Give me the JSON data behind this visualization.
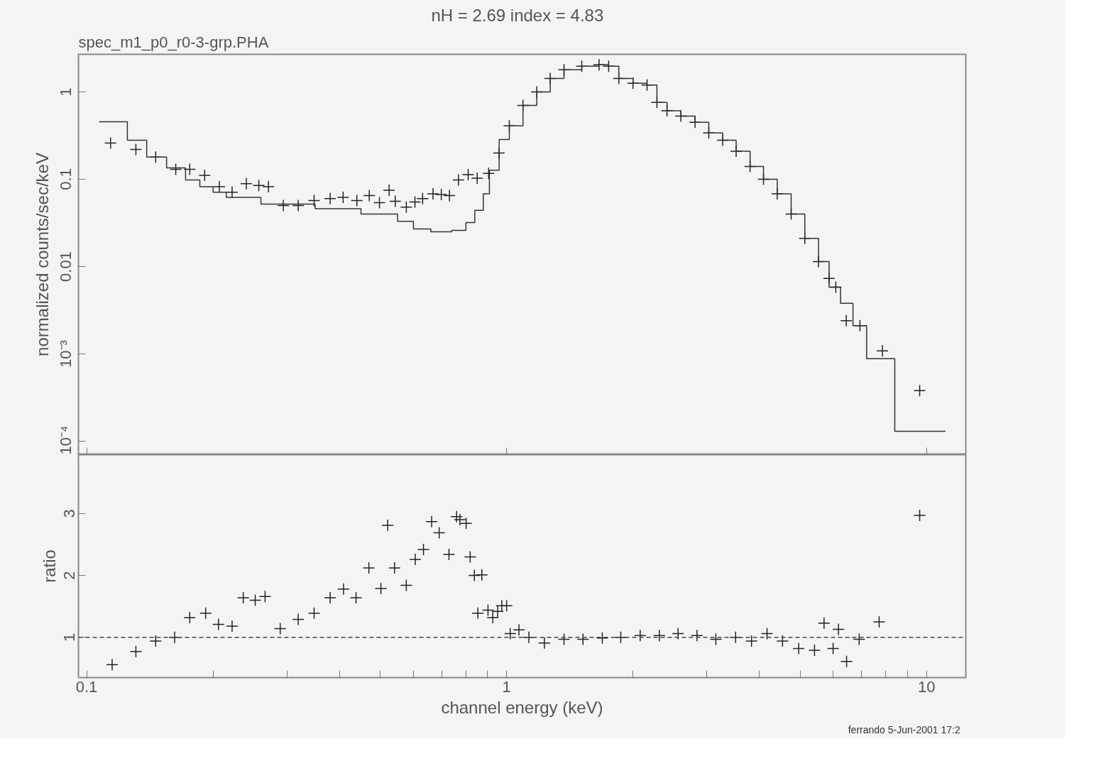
{
  "chart_data": [
    {
      "type": "scatter",
      "title": "nH = 2.69   index = 4.83",
      "subtitle": "spec_m1_p0_r0-3-grp.PHA",
      "ylabel": "normalized counts/sec/keV",
      "log": "xy",
      "grid": false,
      "tick_labels": "y",
      "xlim": [
        0.0956,
        12.4
      ],
      "ylim": [
        7e-05,
        2.7
      ],
      "xticks": [
        0.1,
        1,
        10
      ],
      "yticks": [
        {
          "value": 0.0001,
          "label": "10⁻⁴"
        },
        {
          "value": 0.001,
          "label": "10⁻³"
        },
        0.01,
        0.1,
        1
      ],
      "series": [
        {
          "color": "#222222",
          "marker": "cross",
          "x": [
            0.114,
            0.131,
            0.146,
            0.163,
            0.176,
            0.191,
            0.207,
            0.222,
            0.24,
            0.257,
            0.271,
            0.294,
            0.319,
            0.348,
            0.38,
            0.408,
            0.44,
            0.471,
            0.498,
            0.525,
            0.543,
            0.577,
            0.605,
            0.631,
            0.668,
            0.699,
            0.731,
            0.768,
            0.81,
            0.851,
            0.906,
            0.959,
            1.015,
            1.094,
            1.18,
            1.27,
            1.37,
            1.51,
            1.66,
            1.75,
            1.85,
            2.0,
            2.16,
            2.28,
            2.41,
            2.6,
            2.81,
            3.03,
            3.27,
            3.52,
            3.8,
            4.09,
            4.41,
            4.76,
            5.13,
            5.53,
            5.86,
            6.08,
            6.44,
            6.94,
            7.85,
            9.63
          ],
          "values": [
            0.26,
            0.22,
            0.18,
            0.13,
            0.13,
            0.111,
            0.082,
            0.071,
            0.089,
            0.085,
            0.082,
            0.05,
            0.05,
            0.057,
            0.06,
            0.062,
            0.057,
            0.065,
            0.054,
            0.075,
            0.056,
            0.048,
            0.055,
            0.06,
            0.068,
            0.067,
            0.065,
            0.098,
            0.113,
            0.103,
            0.117,
            0.2,
            0.41,
            0.7,
            1.0,
            1.43,
            1.8,
            1.97,
            2.05,
            1.97,
            1.43,
            1.26,
            1.2,
            0.76,
            0.61,
            0.53,
            0.45,
            0.34,
            0.28,
            0.21,
            0.14,
            0.1,
            0.068,
            0.04,
            0.021,
            0.0114,
            0.0073,
            0.0058,
            0.0024,
            0.0021,
            0.00108,
            0.00038
          ]
        },
        {
          "type": "step",
          "color": "#333333",
          "x": [
            0.107,
            0.125,
            0.139,
            0.155,
            0.172,
            0.186,
            0.2,
            0.215,
            0.26,
            0.35,
            0.45,
            0.55,
            0.6,
            0.66,
            0.74,
            0.8,
            0.84,
            0.88,
            0.91,
            0.96,
            1.015,
            1.094,
            1.18,
            1.27,
            1.37,
            1.51,
            1.66,
            1.75,
            1.85,
            2.0,
            2.16,
            2.28,
            2.41,
            2.6,
            2.81,
            3.03,
            3.27,
            3.52,
            3.8,
            4.09,
            4.41,
            4.76,
            5.13,
            5.53,
            5.86,
            6.24,
            6.68,
            7.2,
            8.4,
            11.1
          ],
          "values": [
            0.455,
            0.28,
            0.18,
            0.135,
            0.098,
            0.082,
            0.071,
            0.062,
            0.052,
            0.046,
            0.04,
            0.033,
            0.027,
            0.025,
            0.026,
            0.032,
            0.044,
            0.068,
            0.127,
            0.286,
            0.41,
            0.7,
            1.0,
            1.43,
            1.8,
            1.97,
            2.05,
            1.97,
            1.43,
            1.26,
            1.2,
            0.76,
            0.61,
            0.53,
            0.45,
            0.34,
            0.28,
            0.21,
            0.14,
            0.1,
            0.068,
            0.04,
            0.021,
            0.0114,
            0.0058,
            0.0038,
            0.0021,
            0.00088,
            0.00013,
            0.00013
          ]
        }
      ]
    },
    {
      "type": "scatter",
      "xlabel": "channel energy (keV)",
      "ylabel": "ratio",
      "log": "x",
      "marker": "cross",
      "grid": false,
      "xlim": [
        0.0956,
        12.4
      ],
      "ylim": [
        0.35,
        3.95
      ],
      "xticks": [
        0.1,
        {
          "value": 0.2,
          "label": null
        },
        {
          "value": 0.3,
          "label": null
        },
        {
          "value": 0.4,
          "label": null
        },
        {
          "value": 0.5,
          "label": null
        },
        {
          "value": 0.6,
          "label": null
        },
        {
          "value": 0.7,
          "label": null
        },
        {
          "value": 0.8,
          "label": null
        },
        {
          "value": 0.9,
          "label": null
        },
        1,
        {
          "value": 2,
          "label": null
        },
        {
          "value": 3,
          "label": null
        },
        {
          "value": 4,
          "label": null
        },
        {
          "value": 5,
          "label": null
        },
        {
          "value": 6,
          "label": null
        },
        {
          "value": 7,
          "label": null
        },
        {
          "value": 8,
          "label": null
        },
        {
          "value": 9,
          "label": null
        },
        10
      ],
      "yticks": [
        1,
        2,
        3
      ],
      "ref_lines": [
        {
          "axis": "y",
          "value": 1,
          "line_style": "dashed",
          "color": "#444444"
        }
      ],
      "annotations": [
        "ferrando  5-Jun-2001  17:2"
      ],
      "series": [
        {
          "color": "#222222",
          "x": [
            0.115,
            0.131,
            0.146,
            0.162,
            0.176,
            0.192,
            0.206,
            0.222,
            0.236,
            0.252,
            0.266,
            0.289,
            0.319,
            0.348,
            0.38,
            0.409,
            0.438,
            0.47,
            0.502,
            0.521,
            0.541,
            0.577,
            0.606,
            0.634,
            0.663,
            0.691,
            0.729,
            0.76,
            0.774,
            0.801,
            0.819,
            0.838,
            0.854,
            0.873,
            0.903,
            0.927,
            0.952,
            0.974,
            1.0,
            1.02,
            1.07,
            1.13,
            1.23,
            1.37,
            1.52,
            1.69,
            1.87,
            2.08,
            2.31,
            2.56,
            2.84,
            3.15,
            3.51,
            3.83,
            4.17,
            4.54,
            4.96,
            5.41,
            5.7,
            5.99,
            6.17,
            6.45,
            6.91,
            7.71,
            9.63
          ],
          "values": [
            0.56,
            0.77,
            0.94,
            1.0,
            1.32,
            1.39,
            1.21,
            1.18,
            1.64,
            1.6,
            1.66,
            1.14,
            1.29,
            1.39,
            1.64,
            1.78,
            1.64,
            2.12,
            1.79,
            2.81,
            2.12,
            1.84,
            2.26,
            2.42,
            2.87,
            2.69,
            2.34,
            2.95,
            2.9,
            2.84,
            2.3,
            2.0,
            1.39,
            2.01,
            1.44,
            1.32,
            1.42,
            1.51,
            1.51,
            1.06,
            1.12,
            1.0,
            0.91,
            0.97,
            0.97,
            0.99,
            1.0,
            1.03,
            1.03,
            1.06,
            1.03,
            0.97,
            1.0,
            0.94,
            1.06,
            0.94,
            0.82,
            0.79,
            1.23,
            0.82,
            1.13,
            0.61,
            0.97,
            1.25,
            2.97
          ]
        }
      ]
    }
  ]
}
